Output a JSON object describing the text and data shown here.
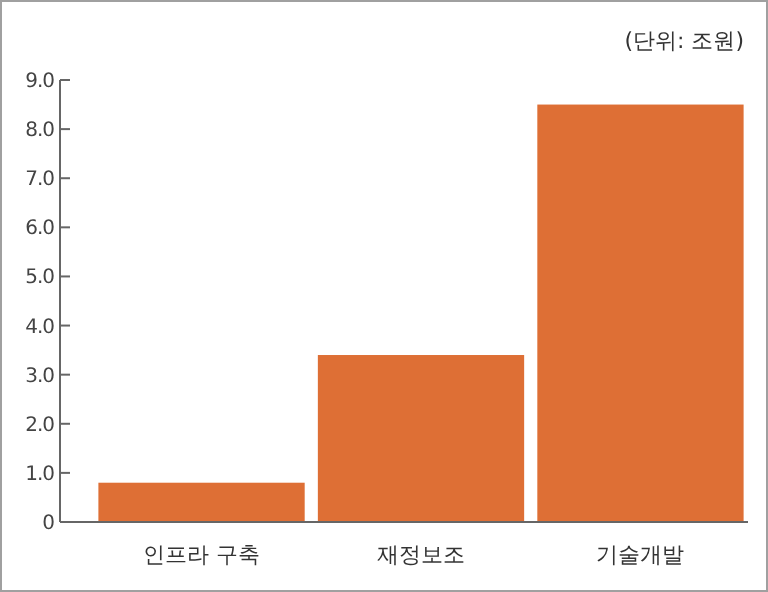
{
  "chart_data": {
    "type": "bar",
    "categories": [
      "인프라 구축",
      "재정보조",
      "기술개발"
    ],
    "values": [
      0.8,
      3.4,
      8.5
    ],
    "color": "#de6f35",
    "ylim": [
      0,
      9
    ],
    "yticks": [
      0,
      {
        "value": 1,
        "label": "1.0"
      },
      {
        "value": 2,
        "label": "2.0"
      },
      {
        "value": 3,
        "label": "3.0"
      },
      {
        "value": 4,
        "label": "4.0"
      },
      {
        "value": 5,
        "label": "5.0"
      },
      {
        "value": 6,
        "label": "6.0"
      },
      {
        "value": 7,
        "label": "7.0"
      },
      {
        "value": 8,
        "label": "8.0"
      },
      {
        "value": 9,
        "label": "9.0"
      }
    ],
    "annotations": [
      "(단위: 조원)"
    ],
    "grid": false
  }
}
